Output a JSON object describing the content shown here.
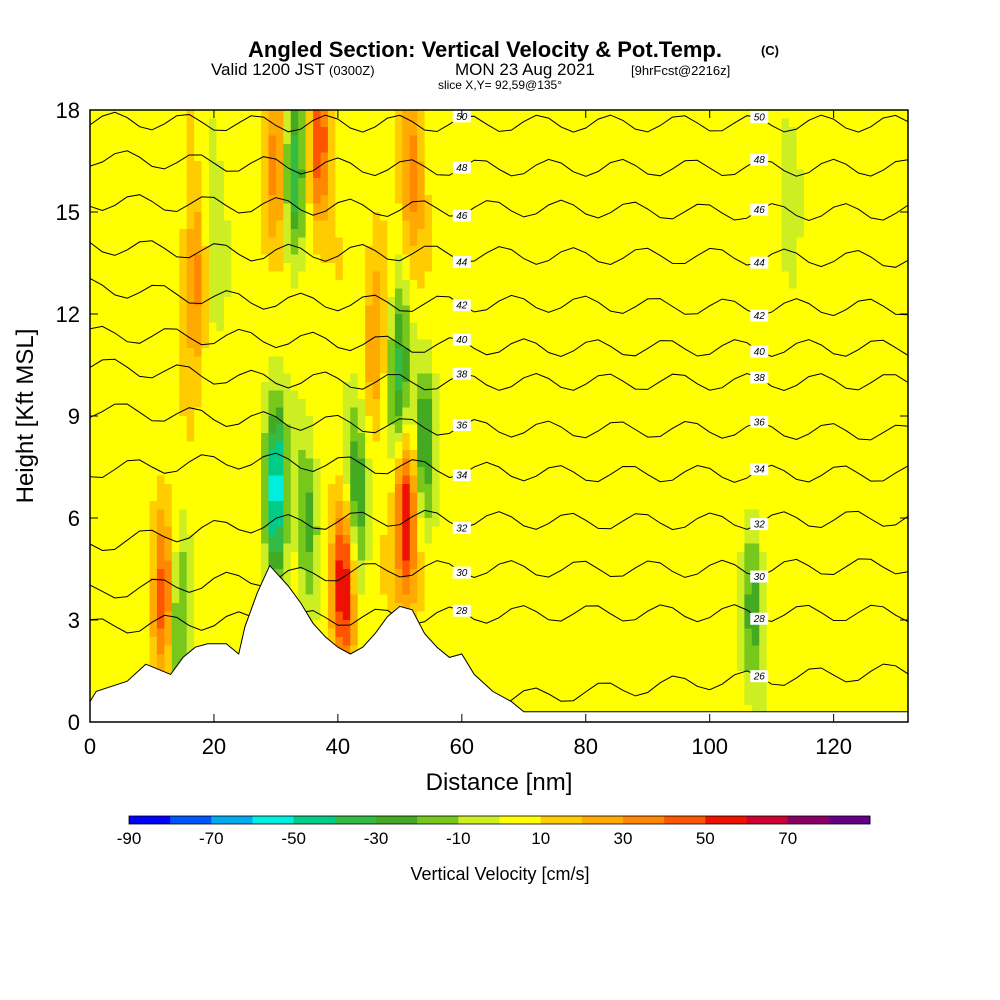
{
  "header": {
    "title_main": "Angled Section: Vertical Velocity & Pot.Temp.",
    "title_c": "(C)",
    "subtitle_a": "Valid 1200 JST",
    "subtitle_b": "(0300Z)",
    "subtitle_c": "MON 23 Aug 2021",
    "subtitle_d": "[9hrFcst@2216z]",
    "slice": "slice X,Y= 92,59@135°"
  },
  "chart_data": {
    "type": "heatmap",
    "title": "Angled Section: Vertical Velocity & Pot.Temp. (C)",
    "xlabel": "Distance [nm]",
    "ylabel": "Height [Kft MSL]",
    "xlim": [
      0,
      132
    ],
    "ylim": [
      0,
      18
    ],
    "x_ticks": [
      "0",
      "20",
      "40",
      "60",
      "80",
      "100",
      "120"
    ],
    "y_ticks": [
      "0",
      "3",
      "6",
      "9",
      "12",
      "15",
      "18"
    ],
    "terrain": [
      [
        0,
        0.6
      ],
      [
        1,
        0.9
      ],
      [
        6,
        1.2
      ],
      [
        9,
        1.7
      ],
      [
        13,
        1.4
      ],
      [
        15,
        1.9
      ],
      [
        17,
        2.2
      ],
      [
        19,
        2.3
      ],
      [
        22,
        2.3
      ],
      [
        24,
        2.0
      ],
      [
        25,
        2.8
      ],
      [
        27,
        3.8
      ],
      [
        29,
        4.6
      ],
      [
        32,
        4.0
      ],
      [
        34,
        3.5
      ],
      [
        36,
        2.9
      ],
      [
        38,
        2.5
      ],
      [
        40,
        2.2
      ],
      [
        42,
        2.0
      ],
      [
        44,
        2.2
      ],
      [
        46,
        2.6
      ],
      [
        48,
        3.1
      ],
      [
        50,
        3.4
      ],
      [
        52,
        3.3
      ],
      [
        54,
        2.6
      ],
      [
        56,
        2.2
      ],
      [
        58,
        1.9
      ],
      [
        60,
        2.0
      ],
      [
        62,
        1.4
      ],
      [
        65,
        0.9
      ],
      [
        68,
        0.6
      ],
      [
        70,
        0.3
      ],
      [
        132,
        0.3
      ]
    ],
    "updraft_cores": [
      [
        12,
        3.5,
        45
      ],
      [
        17,
        13.0,
        30
      ],
      [
        30,
        16.0,
        30
      ],
      [
        37,
        17.0,
        40
      ],
      [
        41,
        4.0,
        55
      ],
      [
        46,
        11.0,
        25
      ],
      [
        51,
        6.0,
        60
      ],
      [
        52,
        16.0,
        30
      ]
    ],
    "downdraft_cores": [
      [
        14,
        3.0,
        -35
      ],
      [
        20,
        14.0,
        -20
      ],
      [
        30,
        7.0,
        -65
      ],
      [
        33,
        16.0,
        -45
      ],
      [
        35,
        6.0,
        -30
      ],
      [
        43,
        7.0,
        -40
      ],
      [
        50,
        10.0,
        -45
      ],
      [
        54,
        8.0,
        -35
      ],
      [
        107,
        3.0,
        -30
      ],
      [
        113,
        16.0,
        -15
      ]
    ],
    "isentropes": [
      {
        "level": 26,
        "label": "26",
        "y": [
          0.5,
          0.5,
          0.5,
          0.8,
          1.2,
          1.5
        ]
      },
      {
        "level": 28,
        "label": "28",
        "y": [
          2.8,
          3.0,
          3.1,
          3.2,
          3.2,
          3.2
        ]
      },
      {
        "level": 30,
        "label": "30",
        "y": [
          3.8,
          4.2,
          4.5,
          4.5,
          4.5,
          4.6
        ]
      },
      {
        "level": 32,
        "label": "32",
        "y": [
          5.2,
          5.8,
          6.0,
          5.9,
          5.9,
          6.0
        ]
      },
      {
        "level": 34,
        "label": "34",
        "y": [
          7.4,
          7.7,
          7.5,
          7.3,
          7.3,
          7.3
        ]
      },
      {
        "level": 36,
        "label": "36",
        "y": [
          9.2,
          8.9,
          8.7,
          8.6,
          8.6,
          8.5
        ]
      },
      {
        "level": 38,
        "label": "38",
        "y": [
          10.5,
          10.1,
          10.0,
          10.0,
          10.0,
          10.0
        ]
      },
      {
        "level": 40,
        "label": "40",
        "y": [
          11.4,
          11.3,
          11.1,
          11.0,
          11.0,
          11.0
        ]
      },
      {
        "level": 42,
        "label": "42",
        "y": [
          12.8,
          12.4,
          12.3,
          12.3,
          12.2,
          12.2
        ]
      },
      {
        "level": 44,
        "label": "44",
        "y": [
          14.0,
          13.8,
          13.8,
          13.7,
          13.7,
          13.6
        ]
      },
      {
        "level": 46,
        "label": "46",
        "y": [
          15.3,
          15.2,
          15.1,
          15.1,
          15.0,
          15.0
        ]
      },
      {
        "level": 48,
        "label": "48",
        "y": [
          16.6,
          16.4,
          16.3,
          16.3,
          16.3,
          16.3
        ]
      },
      {
        "level": 50,
        "label": "50",
        "y": [
          17.7,
          17.6,
          17.6,
          17.6,
          17.6,
          17.6
        ]
      }
    ],
    "isentrope_x": [
      0,
      25,
      50,
      75,
      100,
      132
    ],
    "colorbar": {
      "label": "Vertical Velocity [cm/s]",
      "bounds": [
        -90,
        -80,
        -70,
        -60,
        -50,
        -40,
        -30,
        -20,
        -10,
        0,
        10,
        20,
        30,
        40,
        50,
        60,
        70,
        80
      ],
      "tick_labels": [
        "-90",
        "-70",
        "-50",
        "-30",
        "-10",
        "10",
        "30",
        "50",
        "70"
      ],
      "colors": [
        "#0000ff",
        "#0055ff",
        "#00aaee",
        "#00eedd",
        "#00cc88",
        "#33bb44",
        "#44aa22",
        "#77c81a",
        "#ccee22",
        "#ffff00",
        "#ffcc00",
        "#ffaa00",
        "#ff8800",
        "#ff5500",
        "#ee1100",
        "#cc0033",
        "#880066",
        "#660088"
      ]
    }
  }
}
